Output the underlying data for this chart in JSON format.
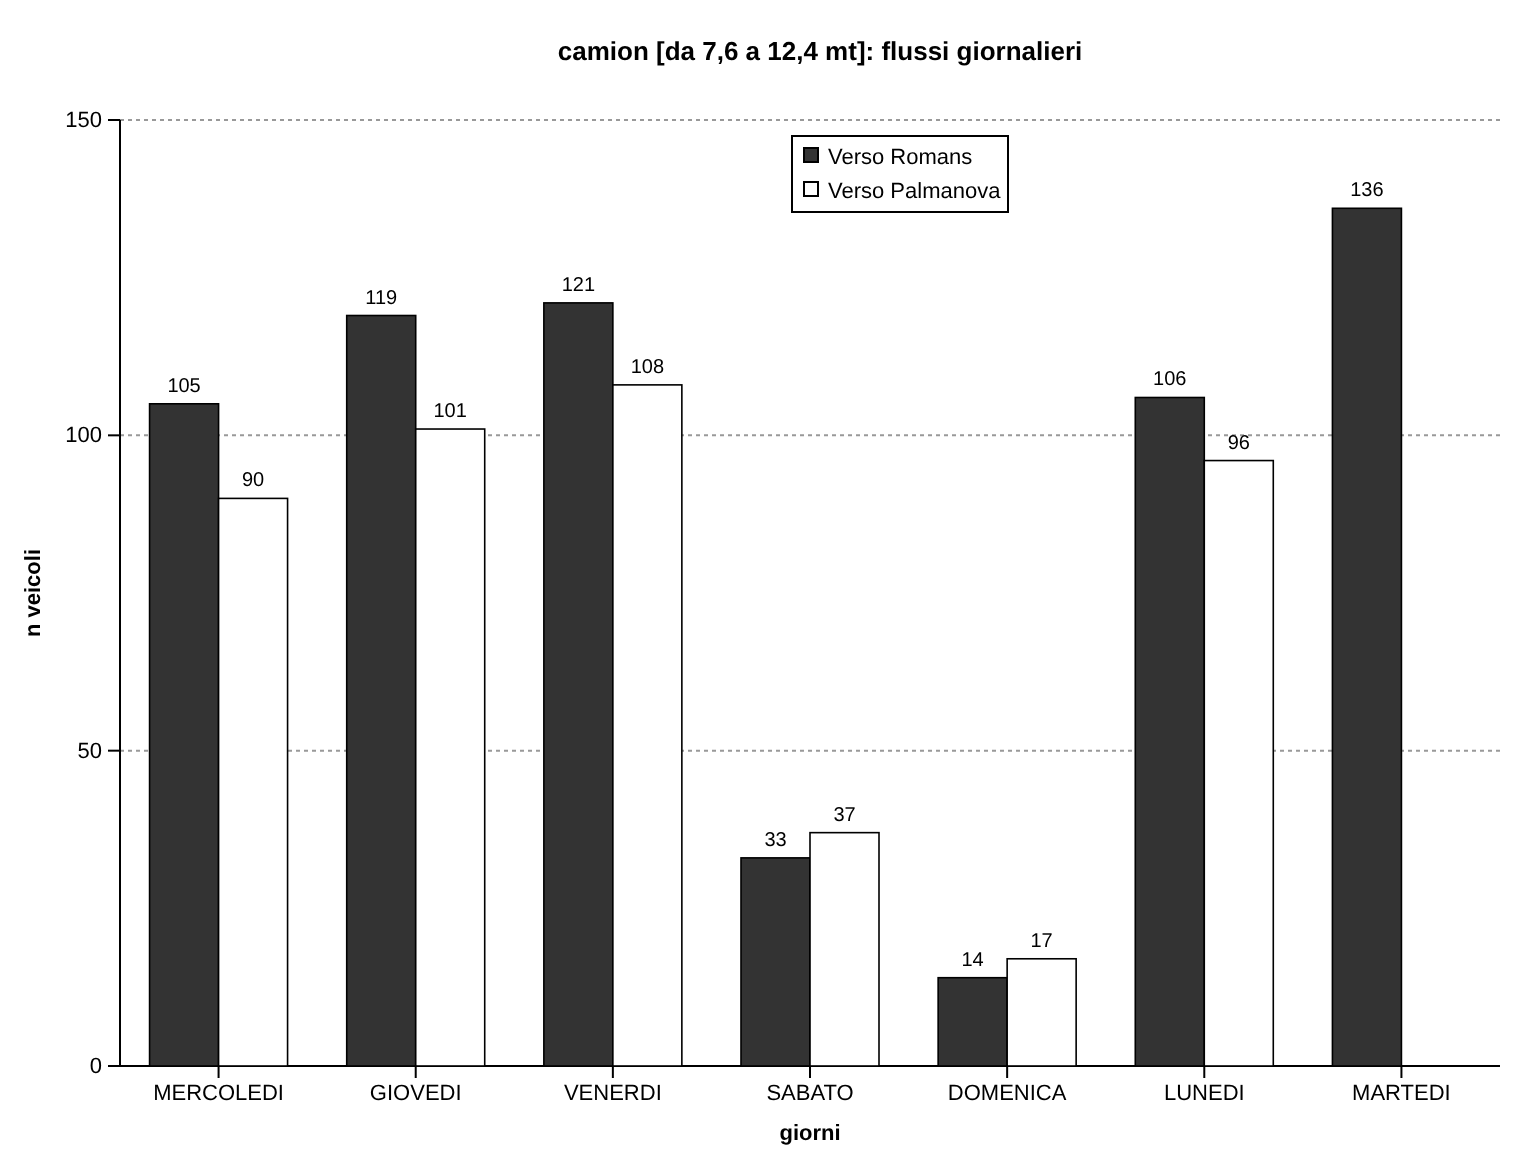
{
  "chart_data": {
    "type": "bar",
    "title": "camion [da 7,6 a 12,4 mt]: flussi giornalieri",
    "xlabel": "giorni",
    "ylabel": "n veicoli",
    "categories": [
      "MERCOLEDI",
      "GIOVEDI",
      "VENERDI",
      "SABATO",
      "DOMENICA",
      "LUNEDI",
      "MARTEDI"
    ],
    "series": [
      {
        "name": "Verso Romans",
        "color": "#333333",
        "values": [
          105,
          119,
          121,
          33,
          14,
          106,
          136
        ]
      },
      {
        "name": "Verso Palmanova",
        "color": "#ffffff",
        "values": [
          90,
          101,
          108,
          37,
          17,
          96,
          null
        ]
      }
    ],
    "ylim": [
      0,
      150
    ],
    "yticks": [
      0,
      50,
      100,
      150
    ],
    "grid": "y",
    "legend": "top",
    "data_labels": true
  }
}
